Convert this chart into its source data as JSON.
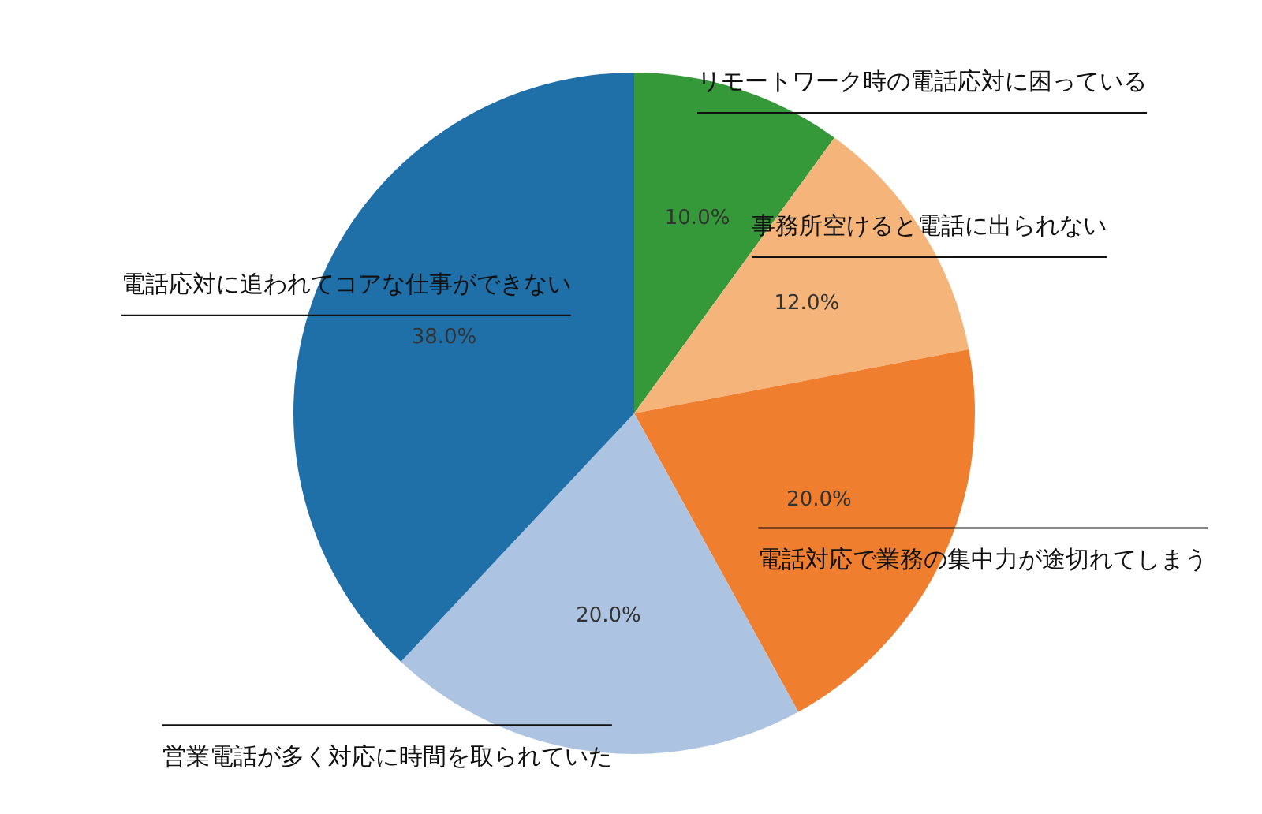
{
  "chart_data": {
    "type": "pie",
    "categories": [
      "リモートワーク時の電話応対に困っている",
      "事務所空けると電話に出られない",
      "電話対応で業務の集中力が途切れてしまう",
      "営業電話が多く対応に時間を取られていた",
      "電話応対に追われてコアな仕事ができない"
    ],
    "values": [
      10,
      12,
      20,
      20,
      38
    ],
    "colors": [
      "#35993a",
      "#f5b57a",
      "#ef7f2f",
      "#adc3e2",
      "#1f6fa8"
    ],
    "value_labels": [
      "10.0%",
      "12.0%",
      "20.0%",
      "20.0%",
      "38.0%"
    ],
    "legend": false
  }
}
